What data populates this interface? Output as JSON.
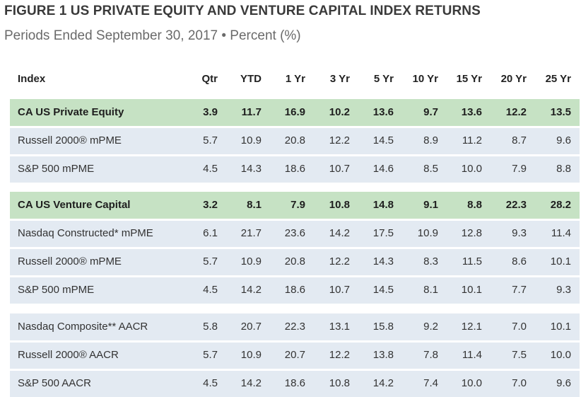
{
  "figure": {
    "title": "FIGURE 1  US PRIVATE EQUITY AND VENTURE CAPITAL INDEX RETURNS",
    "subtitle": "Periods Ended September 30, 2017 • Percent (%)"
  },
  "colors": {
    "group_header_bg": "#c6e2c4",
    "benchmark_row_bg": "#e3eaf2",
    "title_text": "#3a3a3a",
    "subtitle_text": "#6a6a6a"
  },
  "chart_data": {
    "type": "table",
    "title": "FIGURE 1  US PRIVATE EQUITY AND VENTURE CAPITAL INDEX RETURNS",
    "subtitle": "Periods Ended September 30, 2017 • Percent (%)",
    "columns": [
      "Index",
      "Qtr",
      "YTD",
      "1 Yr",
      "3 Yr",
      "5 Yr",
      "10 Yr",
      "15 Yr",
      "20 Yr",
      "25 Yr"
    ],
    "rows": [
      {
        "name": "CA US Private Equity",
        "kind": "group-head",
        "values": [
          "3.9",
          "11.7",
          "16.9",
          "10.2",
          "13.6",
          "9.7",
          "13.6",
          "12.2",
          "13.5"
        ]
      },
      {
        "name": "Russell 2000® mPME",
        "kind": "bench",
        "values": [
          "5.7",
          "10.9",
          "20.8",
          "12.2",
          "14.5",
          "8.9",
          "11.2",
          "8.7",
          "9.6"
        ]
      },
      {
        "name": "S&P 500 mPME",
        "kind": "bench",
        "values": [
          "4.5",
          "14.3",
          "18.6",
          "10.7",
          "14.6",
          "8.5",
          "10.0",
          "7.9",
          "8.8"
        ]
      },
      {
        "name": "CA US Venture Capital",
        "kind": "group-head",
        "values": [
          "3.2",
          "8.1",
          "7.9",
          "10.8",
          "14.8",
          "9.1",
          "8.8",
          "22.3",
          "28.2"
        ]
      },
      {
        "name": "Nasdaq Constructed* mPME",
        "kind": "bench",
        "values": [
          "6.1",
          "21.7",
          "23.6",
          "14.2",
          "17.5",
          "10.9",
          "12.8",
          "9.3",
          "11.4"
        ]
      },
      {
        "name": "Russell 2000® mPME",
        "kind": "bench",
        "values": [
          "5.7",
          "10.9",
          "20.8",
          "12.2",
          "14.3",
          "8.3",
          "11.5",
          "8.6",
          "10.1"
        ]
      },
      {
        "name": "S&P 500 mPME",
        "kind": "bench",
        "values": [
          "4.5",
          "14.2",
          "18.6",
          "10.7",
          "14.5",
          "8.1",
          "10.1",
          "7.7",
          "9.3"
        ]
      },
      {
        "name": "Nasdaq Composite** AACR",
        "kind": "standalone",
        "values": [
          "5.8",
          "20.7",
          "22.3",
          "13.1",
          "15.8",
          "9.2",
          "12.1",
          "7.0",
          "10.1"
        ]
      },
      {
        "name": "Russell 2000® AACR",
        "kind": "standalone",
        "values": [
          "5.7",
          "10.9",
          "20.7",
          "12.2",
          "13.8",
          "7.8",
          "11.4",
          "7.5",
          "10.0"
        ]
      },
      {
        "name": "S&P 500 AACR",
        "kind": "standalone",
        "values": [
          "4.5",
          "14.2",
          "18.6",
          "10.8",
          "14.2",
          "7.4",
          "10.0",
          "7.0",
          "9.6"
        ]
      }
    ]
  }
}
